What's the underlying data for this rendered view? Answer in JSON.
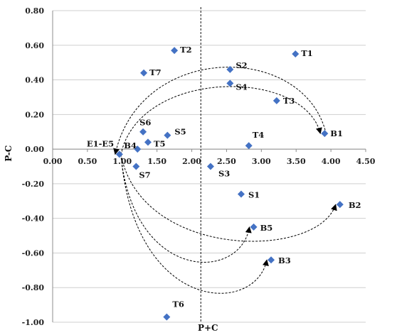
{
  "chart_data": {
    "type": "scatter",
    "title": "",
    "xlabel": "P+C",
    "ylabel": "P-C",
    "xlim": [
      0,
      4.5
    ],
    "ylim": [
      -1.0,
      0.8
    ],
    "x_ticks": [
      "0.00",
      "0.50",
      "1.00",
      "1.50",
      "2.00",
      "2.50",
      "3.00",
      "3.50",
      "4.00",
      "4.50"
    ],
    "y_ticks": [
      "0.80",
      "0.60",
      "0.40",
      "0.20",
      "0.00",
      "-0.20",
      "-0.40",
      "-0.60",
      "-0.80",
      "-1.00"
    ],
    "grid": "horizontal",
    "marker_color": "#4472C4",
    "mean_line_x": 2.13,
    "points": [
      {
        "label": "T1",
        "x": 3.49,
        "y": 0.55
      },
      {
        "label": "T2",
        "x": 1.75,
        "y": 0.57
      },
      {
        "label": "T7",
        "x": 1.31,
        "y": 0.44
      },
      {
        "label": "S2",
        "x": 2.55,
        "y": 0.46
      },
      {
        "label": "S4",
        "x": 2.55,
        "y": 0.38
      },
      {
        "label": "T3",
        "x": 3.22,
        "y": 0.28
      },
      {
        "label": "B1",
        "x": 3.91,
        "y": 0.09
      },
      {
        "label": "S6",
        "x": 1.3,
        "y": 0.1
      },
      {
        "label": "S5",
        "x": 1.65,
        "y": 0.08
      },
      {
        "label": "T5",
        "x": 1.37,
        "y": 0.04
      },
      {
        "label": "B4",
        "x": 1.22,
        "y": 0.0
      },
      {
        "label": "E1-E5",
        "x": 0.96,
        "y": -0.03
      },
      {
        "label": "T4",
        "x": 2.82,
        "y": 0.02
      },
      {
        "label": "S7",
        "x": 1.2,
        "y": -0.1
      },
      {
        "label": "S3",
        "x": 2.27,
        "y": -0.1
      },
      {
        "label": "S1",
        "x": 2.71,
        "y": -0.26
      },
      {
        "label": "B2",
        "x": 4.13,
        "y": -0.32
      },
      {
        "label": "B5",
        "x": 2.89,
        "y": -0.45
      },
      {
        "label": "B3",
        "x": 3.14,
        "y": -0.64
      },
      {
        "label": "T6",
        "x": 1.64,
        "y": -0.97
      }
    ],
    "arrows": [
      {
        "from": "B1",
        "to": "E1-E5"
      },
      {
        "from": "E1-E5",
        "to": "B1"
      },
      {
        "from": "E1-E5",
        "to": "B5"
      },
      {
        "from": "E1-E5",
        "to": "B2"
      },
      {
        "from": "E1-E5",
        "to": "B3"
      }
    ]
  }
}
